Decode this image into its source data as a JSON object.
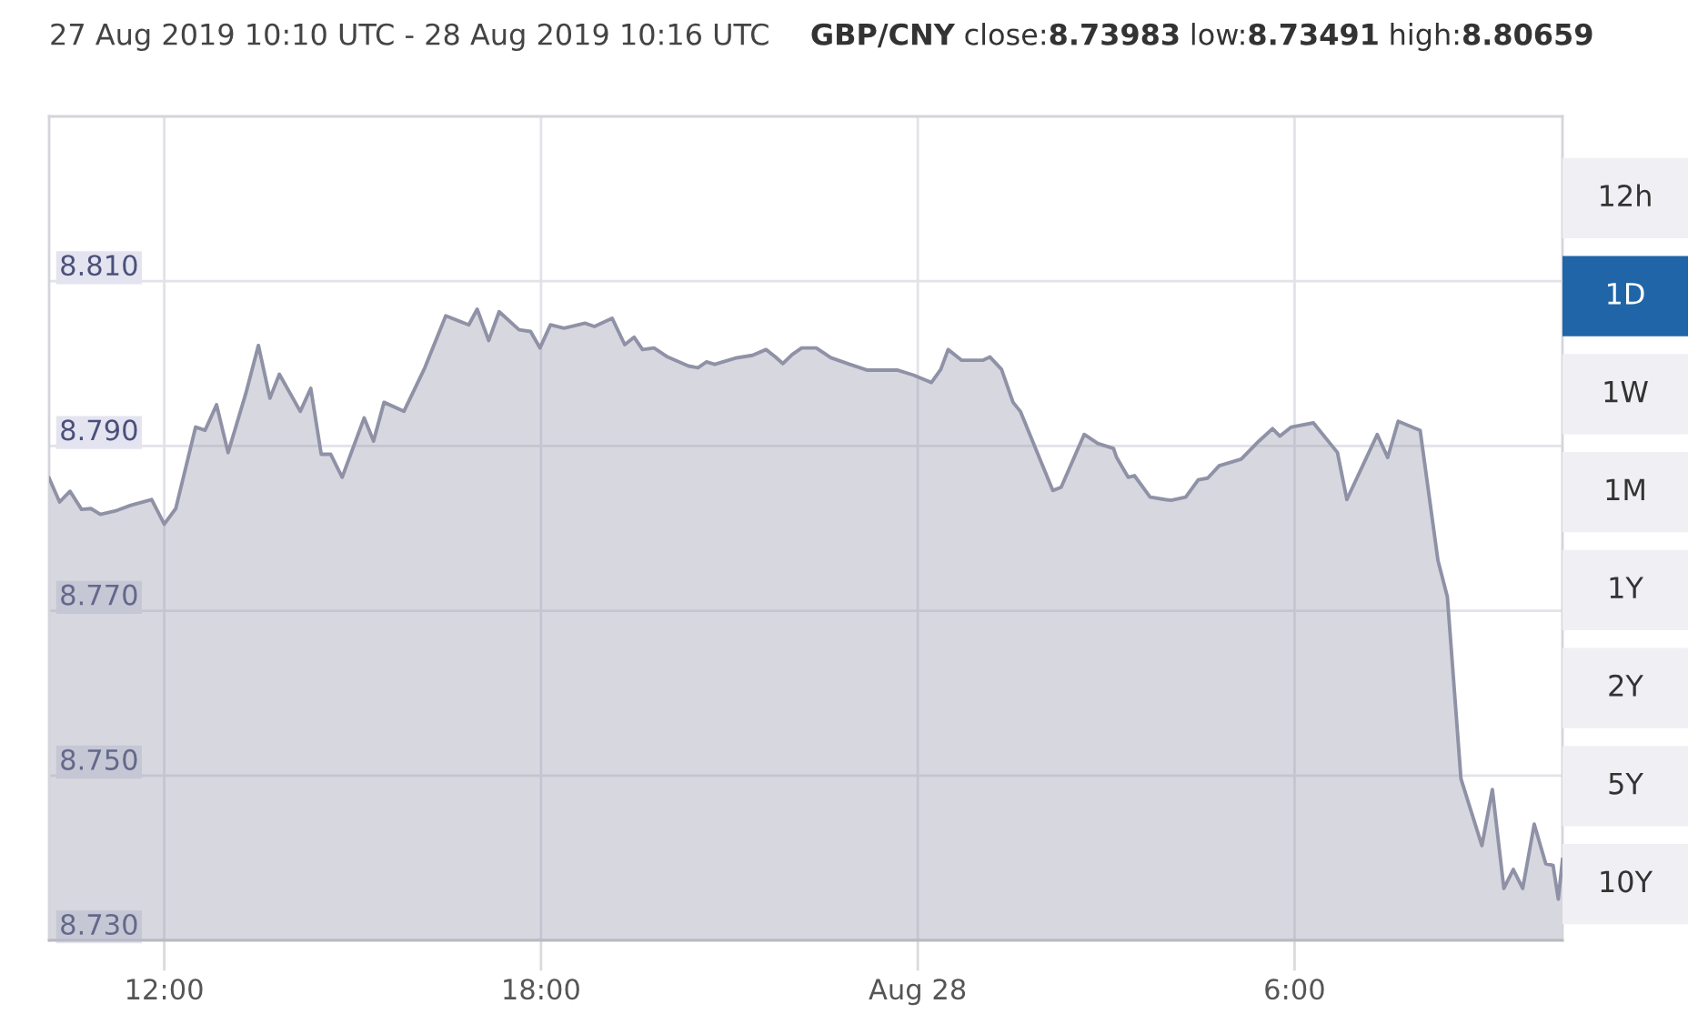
{
  "chart_data": [
    {
      "type": "area",
      "title": "27 Aug 2019 10:10 UTC - 28 Aug 2019 10:16 UTC",
      "subtitle": "GBP/CNY close:8.73983 low:8.73491 high:8.80659",
      "x": [
        "2019-08-27T10:10",
        "2019-08-27T10:20",
        "2019-08-27T10:30",
        "2019-08-27T10:41",
        "2019-08-27T10:50",
        "2019-08-27T10:59",
        "2019-08-27T11:13",
        "2019-08-27T11:28",
        "2019-08-27T11:48",
        "2019-08-27T12:00",
        "2019-08-27T12:11",
        "2019-08-27T12:30",
        "2019-08-27T12:39",
        "2019-08-27T12:50",
        "2019-08-27T13:01",
        "2019-08-27T13:18",
        "2019-08-27T13:30",
        "2019-08-27T13:41",
        "2019-08-27T13:50",
        "2019-08-27T14:10",
        "2019-08-27T14:20",
        "2019-08-27T14:30",
        "2019-08-27T14:39",
        "2019-08-27T14:50",
        "2019-08-27T15:11",
        "2019-08-27T15:20",
        "2019-08-27T15:30",
        "2019-08-27T15:49",
        "2019-08-27T16:09",
        "2019-08-27T16:29",
        "2019-08-27T16:51",
        "2019-08-27T16:59",
        "2019-08-27T17:10",
        "2019-08-27T17:20",
        "2019-08-27T17:39",
        "2019-08-27T17:50",
        "2019-08-27T17:59",
        "2019-08-27T18:09",
        "2019-08-27T18:22",
        "2019-08-27T18:42",
        "2019-08-27T18:51",
        "2019-08-27T19:08",
        "2019-08-27T19:20",
        "2019-08-27T19:29",
        "2019-08-27T19:37",
        "2019-08-27T19:48",
        "2019-08-27T20:01",
        "2019-08-27T20:21",
        "2019-08-27T20:30",
        "2019-08-27T20:38",
        "2019-08-27T20:46",
        "2019-08-27T21:07",
        "2019-08-27T21:22",
        "2019-08-27T21:35",
        "2019-08-27T21:44",
        "2019-08-27T21:51",
        "2019-08-27T22:00",
        "2019-08-27T22:09",
        "2019-08-27T22:23",
        "2019-08-27T22:37",
        "2019-08-27T22:55",
        "2019-08-27T23:12",
        "2019-08-27T23:41",
        "2019-08-27T23:56",
        "2019-08-28T00:13",
        "2019-08-28T00:22",
        "2019-08-28T00:29",
        "2019-08-28T00:42",
        "2019-08-28T01:02",
        "2019-08-28T01:09",
        "2019-08-28T01:20",
        "2019-08-28T01:31",
        "2019-08-28T01:38",
        "2019-08-28T02:09",
        "2019-08-28T02:17",
        "2019-08-28T02:39",
        "2019-08-28T02:52",
        "2019-08-28T03:07",
        "2019-08-28T03:10",
        "2019-08-28T03:21",
        "2019-08-28T03:27",
        "2019-08-28T03:42",
        "2019-08-28T03:56",
        "2019-08-28T04:02",
        "2019-08-28T04:16",
        "2019-08-28T04:28",
        "2019-08-28T04:37",
        "2019-08-28T04:48",
        "2019-08-28T05:09",
        "2019-08-28T05:26",
        "2019-08-28T05:39",
        "2019-08-28T05:46",
        "2019-08-28T05:57",
        "2019-08-28T06:18",
        "2019-08-28T06:41",
        "2019-08-28T06:50",
        "2019-08-28T07:19",
        "2019-08-28T07:29",
        "2019-08-28T07:39",
        "2019-08-28T08:00",
        "2019-08-28T08:17",
        "2019-08-28T08:26",
        "2019-08-28T08:39",
        "2019-08-28T08:59",
        "2019-08-28T09:09",
        "2019-08-28T09:20",
        "2019-08-28T09:29",
        "2019-08-28T09:38",
        "2019-08-28T09:49",
        "2019-08-28T10:00",
        "2019-08-28T10:07",
        "2019-08-28T10:12",
        "2019-08-28T10:16"
      ],
      "values": [
        8.7861,
        8.7832,
        8.7845,
        8.7823,
        8.7824,
        8.7817,
        8.7821,
        8.7828,
        8.7835,
        8.7805,
        8.7824,
        8.7923,
        8.7919,
        8.795,
        8.7892,
        8.7964,
        8.8022,
        8.7958,
        8.7987,
        8.7942,
        8.797,
        8.789,
        8.789,
        8.7862,
        8.7934,
        8.7906,
        8.7953,
        8.7942,
        8.7995,
        8.8058,
        8.8047,
        8.8066,
        8.8028,
        8.8063,
        8.8041,
        8.8039,
        8.8019,
        8.8047,
        8.8043,
        8.8049,
        8.8045,
        8.8055,
        8.8023,
        8.8032,
        8.8017,
        8.8019,
        8.8008,
        8.7997,
        8.7995,
        8.8002,
        8.7999,
        8.8007,
        8.801,
        8.8017,
        8.8008,
        8.8,
        8.8011,
        8.8019,
        8.8019,
        8.8007,
        8.7999,
        8.7992,
        8.7992,
        8.7986,
        8.7977,
        8.7993,
        8.8017,
        8.8004,
        8.8004,
        8.8008,
        8.7993,
        8.7953,
        8.7942,
        8.7846,
        8.785,
        8.7914,
        8.7903,
        8.7897,
        8.7886,
        8.7862,
        8.7864,
        8.7838,
        8.7835,
        8.7834,
        8.7838,
        8.7859,
        8.7861,
        8.7876,
        8.7884,
        8.7906,
        8.7921,
        8.7912,
        8.7923,
        8.7928,
        8.7892,
        8.7835,
        8.7914,
        8.7886,
        8.793,
        8.7919,
        8.7761,
        8.7717,
        8.7496,
        8.7415,
        8.7483,
        8.7363,
        8.7386,
        8.7363,
        8.7441,
        8.7393,
        8.7391,
        8.735,
        8.7398
      ],
      "color": "#8f92a6",
      "xlim": [
        "2019-08-27T10:10",
        "2019-08-28T10:16"
      ],
      "xticks": [
        {
          "value": "2019-08-27T12:00",
          "label": "12:00"
        },
        {
          "value": "2019-08-27T18:00",
          "label": "18:00"
        },
        {
          "value": "2019-08-28T00:00",
          "label": "Aug 28"
        },
        {
          "value": "2019-08-28T06:00",
          "label": "6:00"
        }
      ],
      "ylim": [
        8.73,
        8.83
      ],
      "yticks": [
        {
          "value": 8.73,
          "label": "8.730"
        },
        {
          "value": 8.75,
          "label": "8.750"
        },
        {
          "value": 8.77,
          "label": "8.770"
        },
        {
          "value": 8.79,
          "label": "8.790"
        },
        {
          "value": 8.81,
          "label": "8.810"
        }
      ],
      "grid": true
    },
    {
      "type": "other",
      "categories": [
        "12h",
        "1D",
        "1W",
        "1M",
        "1Y",
        "2Y",
        "5Y",
        "10Y"
      ],
      "colors": [
        "#f0f0f4",
        "#1f65a8",
        "#f0f0f4",
        "#f0f0f4",
        "#f0f0f4",
        "#f0f0f4",
        "#f0f0f4",
        "#f0f0f4"
      ]
    }
  ]
}
